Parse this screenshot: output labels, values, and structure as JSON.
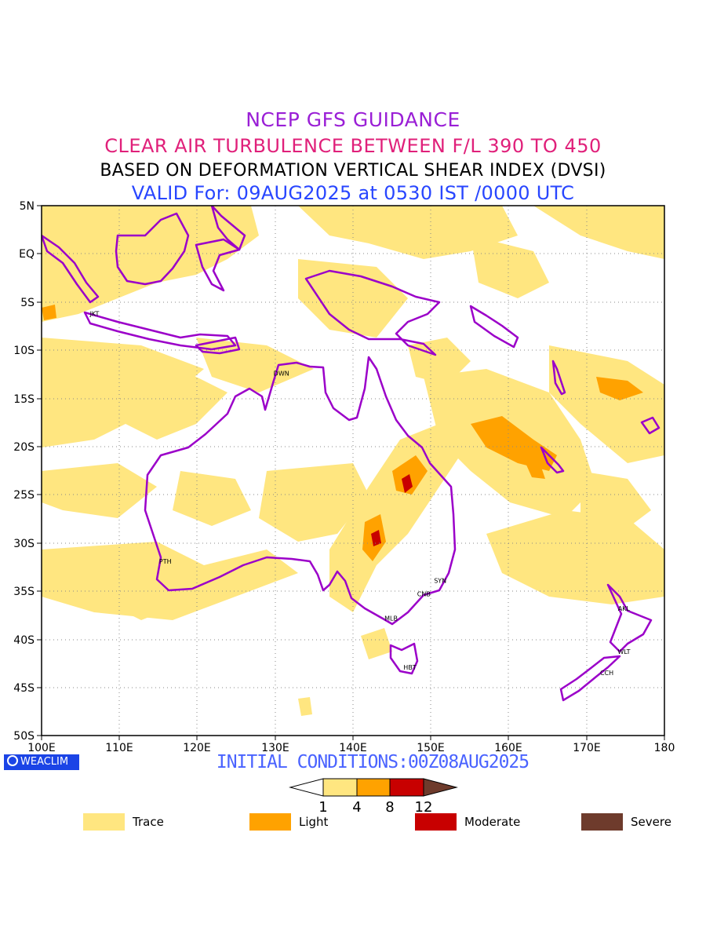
{
  "titles": {
    "line1": "NCEP GFS GUIDANCE",
    "line2": "CLEAR AIR TURBULENCE BETWEEN F/L 390 TO 450",
    "line3": "BASED ON DEFORMATION VERTICAL SHEAR INDEX (DVSI)",
    "line4": "VALID For: 09AUG2025 at 0530 IST /0000 UTC"
  },
  "map": {
    "lat_range": [
      -50,
      5
    ],
    "lon_range": [
      100,
      180
    ],
    "lat_labels": [
      "5N",
      "EQ",
      "5S",
      "10S",
      "15S",
      "20S",
      "25S",
      "30S",
      "35S",
      "40S",
      "45S",
      "50S"
    ],
    "lon_labels": [
      "100E",
      "110E",
      "120E",
      "130E",
      "140E",
      "150E",
      "160E",
      "170E",
      "180"
    ],
    "grid": true,
    "coastline_color": "#9b00c9",
    "cities": [
      {
        "code": "JKT",
        "lon": 106.8,
        "lat": -6.2
      },
      {
        "code": "DWN",
        "lon": 130.8,
        "lat": -12.4
      },
      {
        "code": "PTH",
        "lon": 115.9,
        "lat": -31.9
      },
      {
        "code": "SYN",
        "lon": 151.2,
        "lat": -33.9
      },
      {
        "code": "CNB",
        "lon": 149.1,
        "lat": -35.3
      },
      {
        "code": "MLB",
        "lon": 144.9,
        "lat": -37.8
      },
      {
        "code": "HBT",
        "lon": 147.3,
        "lat": -42.9
      },
      {
        "code": "AKL",
        "lon": 174.8,
        "lat": -36.8
      },
      {
        "code": "WLT",
        "lon": 174.8,
        "lat": -41.3
      },
      {
        "code": "CCH",
        "lon": 172.6,
        "lat": -43.5
      }
    ]
  },
  "footer": {
    "logo": "WEACLIM",
    "initial_conditions": "INITIAL CONDITIONS:00Z08AUG2025"
  },
  "colorbar": {
    "ticks": [
      "1",
      "4",
      "8",
      "12"
    ],
    "colors": [
      "#ffffff",
      "#ffe680",
      "#ffa200",
      "#c80000",
      "#6e3b2c"
    ]
  },
  "legend": [
    {
      "label": "Trace",
      "color": "#ffe680"
    },
    {
      "label": "Light",
      "color": "#ffa200"
    },
    {
      "label": "Moderate",
      "color": "#c80000"
    },
    {
      "label": "Severe",
      "color": "#6e3b2c"
    }
  ]
}
